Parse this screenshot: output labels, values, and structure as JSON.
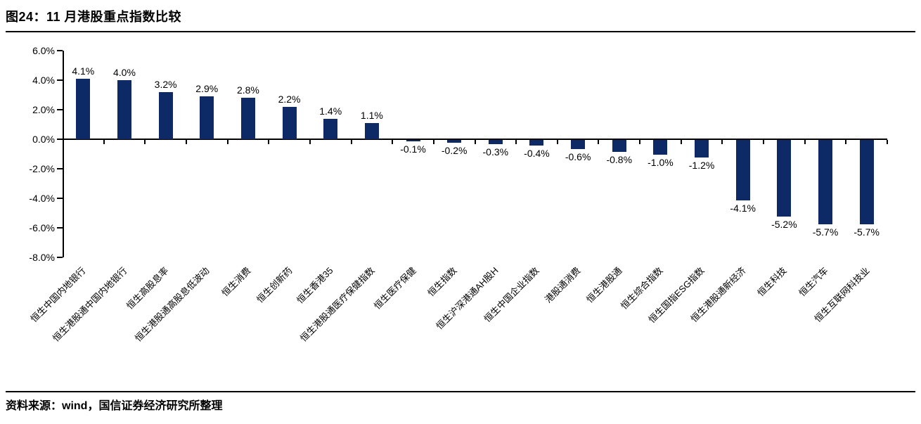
{
  "page": {
    "title": "图24：11 月港股重点指数比较",
    "source": "资料来源：wind，国信证券经济研究所整理"
  },
  "chart_data": {
    "type": "bar",
    "title": "图24：11 月港股重点指数比较",
    "categories": [
      "恒生中国内地银行",
      "恒生港股通中国内地银行",
      "恒生高股息率",
      "恒生港股通高股息低波动",
      "恒生消费",
      "恒生创新药",
      "恒生香港35",
      "恒生港股通医疗保健指数",
      "恒生医疗保健",
      "恒生指数",
      "恒生沪深港通AH股H",
      "恒生中国企业指数",
      "港股通消费",
      "恒生港股通",
      "恒生综合指数",
      "恒生国指ESG指数",
      "恒生港股通新经济",
      "恒生科技",
      "恒生汽车",
      "恒生互联网科技业"
    ],
    "values": [
      4.1,
      4.0,
      3.2,
      2.9,
      2.8,
      2.2,
      1.4,
      1.1,
      -0.1,
      -0.2,
      -0.3,
      -0.4,
      -0.6,
      -0.8,
      -1.0,
      -1.2,
      -4.1,
      -5.2,
      -5.7,
      -5.7
    ],
    "value_labels": [
      "4.1%",
      "4.0%",
      "3.2%",
      "2.9%",
      "2.8%",
      "2.2%",
      "1.4%",
      "1.1%",
      "-0.1%",
      "-0.2%",
      "-0.3%",
      "-0.4%",
      "-0.6%",
      "-0.8%",
      "-1.0%",
      "-1.2%",
      "-4.1%",
      "-5.2%",
      "-5.7%",
      "-5.7%"
    ],
    "ytick_labels": [
      "6.0%",
      "4.0%",
      "2.0%",
      "0.0%",
      "-2.0%",
      "-4.0%",
      "-6.0%",
      "-8.0%"
    ],
    "ytick_values": [
      6,
      4,
      2,
      0,
      -2,
      -4,
      -6,
      -8
    ],
    "ylim": [
      -8,
      6
    ],
    "xlabel": "",
    "ylabel": "",
    "grid": false,
    "legend_position": "none",
    "bar_color": "#0d2a66",
    "axis_color": "#000000",
    "background_color": "#ffffff"
  }
}
